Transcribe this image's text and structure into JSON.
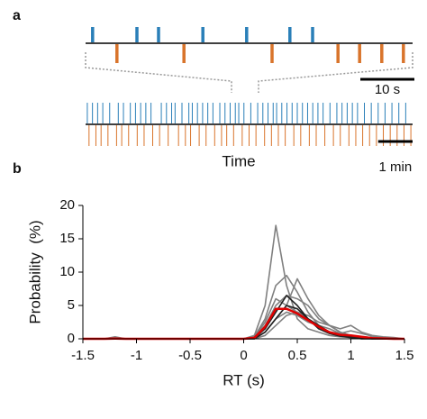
{
  "chart_data": [
    {
      "type": "raster",
      "panel": "a",
      "rasters": [
        {
          "xlim": [
            0,
            60.5
          ],
          "series": [
            {
              "color": "#2a7fb8",
              "values": [
                1.3,
                9.5,
                13.5,
                21.7,
                29.8,
                37.8,
                42
              ]
            },
            {
              "color": "#d9742b",
              "values": [
                5.8,
                18.2,
                34.5,
                46.7,
                50.7,
                54.8,
                58.8
              ]
            }
          ],
          "scalebar": {
            "value": 10,
            "label": "10 s"
          }
        },
        {
          "xlim": [
            0,
            9.5
          ],
          "series": [
            {
              "color": "#2a7fb8",
              "values": [
                0.05,
                0.2,
                0.35,
                0.5,
                0.7,
                0.95,
                1.1,
                1.3,
                1.45,
                1.6,
                1.75,
                1.9,
                2.2,
                2.35,
                2.5,
                2.6,
                2.8,
                3.0,
                3.1,
                3.25,
                3.4,
                3.55,
                3.7,
                3.9,
                4.05,
                4.2,
                4.35,
                4.45,
                4.6,
                4.8,
                5.0,
                5.15,
                5.3,
                5.45,
                5.55,
                5.7,
                5.85,
                6.0,
                6.15,
                6.3,
                6.45,
                6.6,
                6.75,
                6.9,
                7.1,
                7.3,
                7.45,
                7.6,
                7.75,
                7.9,
                8.1,
                8.3,
                8.5,
                8.7,
                8.9,
                9.1,
                9.3
              ]
            },
            {
              "color": "#d9742b",
              "values": [
                0.1,
                0.3,
                0.45,
                0.65,
                0.9,
                1.05,
                1.25,
                1.5,
                1.7,
                1.95,
                2.15,
                2.4,
                2.7,
                2.9,
                3.05,
                3.3,
                3.5,
                3.75,
                3.95,
                4.1,
                4.3,
                4.55,
                4.75,
                4.95,
                5.2,
                5.4,
                5.6,
                5.8,
                6.05,
                6.25,
                6.5,
                6.7,
                6.95,
                7.2,
                7.4,
                7.65,
                7.85,
                8.05,
                8.25,
                8.45,
                8.65,
                8.85,
                9.05,
                9.25,
                9.45
              ]
            }
          ],
          "scalebar": {
            "value": 1,
            "label": "1 min"
          },
          "xlabel": "Time"
        }
      ]
    },
    {
      "type": "line",
      "panel": "b",
      "xlabel": "RT (s)",
      "ylabel": "Probability  (%)",
      "x": [
        -1.5,
        -1.4,
        -1.3,
        -1.2,
        -1.1,
        -1.0,
        -0.9,
        -0.8,
        -0.7,
        -0.6,
        -0.5,
        -0.4,
        -0.3,
        -0.2,
        -0.1,
        0,
        0.1,
        0.2,
        0.3,
        0.4,
        0.5,
        0.6,
        0.7,
        0.8,
        0.9,
        1.0,
        1.1,
        1.2,
        1.3,
        1.4,
        1.5
      ],
      "xlim": [
        -1.5,
        1.5
      ],
      "ylim": [
        0,
        20
      ],
      "xticks": [
        -1.5,
        -1,
        -0.5,
        0,
        0.5,
        1,
        1.5
      ],
      "yticks": [
        0,
        5,
        10,
        15,
        20
      ],
      "series": [
        {
          "color": "#808080",
          "values": [
            0,
            0,
            0,
            0,
            0,
            0,
            0,
            0,
            0,
            0,
            0,
            0,
            0,
            0,
            0,
            0,
            0.5,
            5,
            17,
            8,
            3,
            1.5,
            1,
            0.5,
            0.3,
            0.2,
            0,
            0,
            0,
            0,
            0
          ]
        },
        {
          "color": "#808080",
          "values": [
            0,
            0,
            0,
            0.3,
            0,
            0,
            0,
            0,
            0,
            0,
            0,
            0,
            0,
            0,
            0,
            0,
            0.3,
            3,
            8,
            9.5,
            7,
            4,
            2,
            1,
            0.5,
            0.3,
            0.2,
            0,
            0,
            0,
            0
          ]
        },
        {
          "color": "#808080",
          "values": [
            0,
            0,
            0,
            0,
            0,
            0,
            0,
            0,
            0,
            0,
            0,
            0,
            0,
            0,
            0,
            0,
            0.2,
            2,
            5,
            6.5,
            6,
            5,
            3,
            2,
            1,
            0.5,
            0.2,
            0,
            0,
            0,
            0
          ]
        },
        {
          "color": "#808080",
          "values": [
            0,
            0,
            0,
            0,
            0,
            0,
            0,
            0,
            0,
            0,
            0,
            0,
            0,
            0,
            0,
            0,
            0,
            1,
            3,
            5,
            9,
            6,
            3.5,
            2,
            1,
            0.5,
            0.3,
            0.2,
            0,
            0,
            0
          ]
        },
        {
          "color": "#808080",
          "values": [
            0,
            0,
            0,
            0,
            0,
            0,
            0,
            0,
            0,
            0,
            0,
            0,
            0,
            0,
            0,
            0,
            0.2,
            2.5,
            6,
            5,
            4,
            3,
            2,
            1.5,
            0.8,
            0.4,
            0.2,
            0,
            0,
            0,
            0
          ]
        },
        {
          "color": "#808080",
          "values": [
            0,
            0,
            0,
            0,
            0,
            0,
            0,
            0,
            0,
            0,
            0,
            0,
            0,
            0,
            0,
            0,
            0,
            0.5,
            2,
            3.5,
            4,
            3.5,
            2.5,
            2,
            1.5,
            2,
            1,
            0.5,
            0.3,
            0.2,
            0
          ]
        },
        {
          "color": "#808080",
          "values": [
            0,
            0,
            0,
            0,
            0,
            0,
            0,
            0,
            0,
            0,
            0,
            0,
            0,
            0,
            0,
            0,
            0.1,
            1,
            3,
            4,
            3.5,
            2.5,
            2,
            1,
            0.8,
            1.2,
            0.8,
            0.4,
            0.2,
            0.1,
            0
          ]
        },
        {
          "color": "#222222",
          "values": [
            0,
            0,
            0,
            0,
            0,
            0,
            0,
            0,
            0,
            0,
            0,
            0,
            0,
            0,
            0,
            0,
            0.1,
            1.5,
            4,
            6.5,
            5,
            3,
            1.5,
            0.8,
            0.4,
            0.2,
            0,
            0,
            0,
            0,
            0
          ]
        },
        {
          "color": "#222222",
          "values": [
            0,
            0,
            0,
            0,
            0,
            0,
            0,
            0,
            0,
            0,
            0,
            0,
            0,
            0,
            0,
            0,
            0,
            1,
            3,
            5,
            4.5,
            3,
            2,
            1,
            0.6,
            0.3,
            0.1,
            0,
            0,
            0,
            0
          ]
        },
        {
          "color": "#e00000",
          "values": [
            0,
            0,
            0,
            0.03,
            0,
            0,
            0,
            0,
            0,
            0,
            0,
            0,
            0,
            0,
            0,
            0,
            0.15,
            1.8,
            4.5,
            4.5,
            3.8,
            2.8,
            1.8,
            1,
            0.6,
            0.5,
            0.3,
            0.1,
            0.05,
            0,
            0
          ]
        }
      ]
    }
  ]
}
